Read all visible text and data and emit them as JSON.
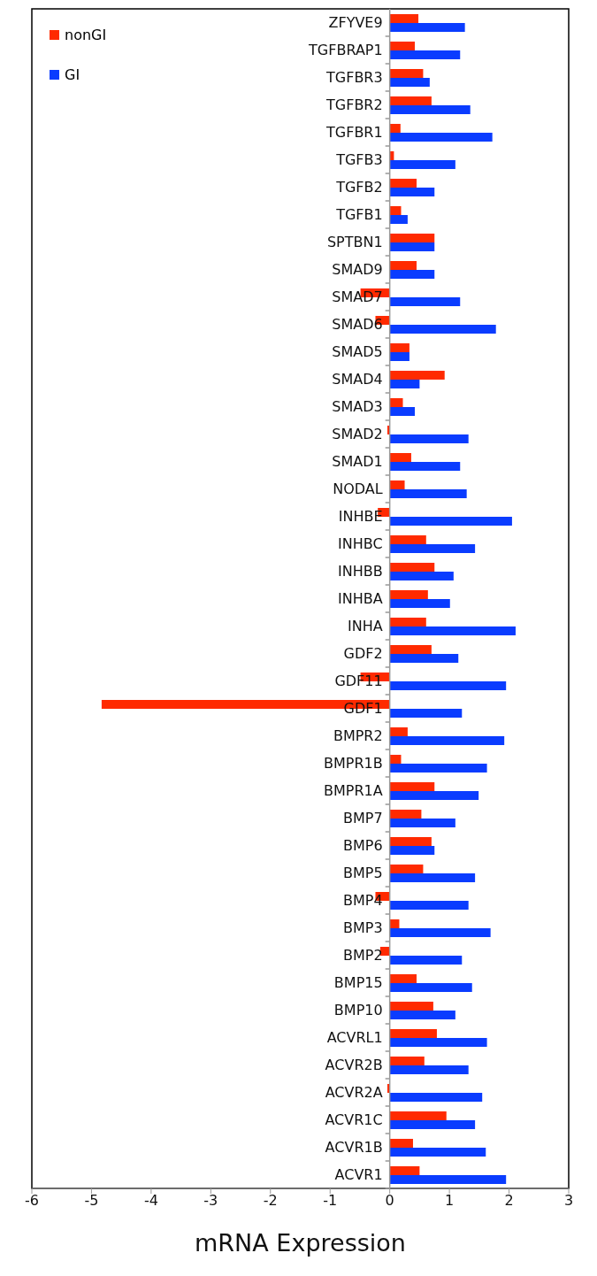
{
  "chart_data": {
    "type": "bar",
    "orientation": "horizontal",
    "xlabel": "mRNA Expression",
    "categories": [
      "ZFYVE9",
      "TGFBRAP1",
      "TGFBR3",
      "TGFBR2",
      "TGFBR1",
      "TGFB3",
      "TGFB2",
      "TGFB1",
      "SPTBN1",
      "SMAD9",
      "SMAD7",
      "SMAD6",
      "SMAD5",
      "SMAD4",
      "SMAD3",
      "SMAD2",
      "SMAD1",
      "NODAL",
      "INHBE",
      "INHBC",
      "INHBB",
      "INHBA",
      "INHA",
      "GDF2",
      "GDF11",
      "GDF1",
      "BMPR2",
      "BMPR1B",
      "BMPR1A",
      "BMP7",
      "BMP6",
      "BMP5",
      "BMP4",
      "BMP3",
      "BMP2",
      "BMP15",
      "BMP10",
      "ACVRL1",
      "ACVR2B",
      "ACVR2A",
      "ACVR1C",
      "ACVR1B",
      "ACVR1"
    ],
    "series": [
      {
        "name": "nonGI",
        "color": "#ff2a00",
        "values": [
          0.48,
          0.42,
          0.56,
          0.7,
          0.18,
          0.07,
          0.45,
          0.19,
          0.75,
          0.45,
          -0.49,
          -0.24,
          0.33,
          0.92,
          0.22,
          -0.04,
          0.36,
          0.25,
          -0.2,
          0.61,
          0.75,
          0.64,
          0.61,
          0.7,
          -0.49,
          -4.83,
          0.3,
          0.19,
          0.75,
          0.53,
          0.7,
          0.56,
          -0.24,
          0.16,
          -0.16,
          0.45,
          0.73,
          0.79,
          0.58,
          -0.04,
          0.95,
          0.39,
          0.5
        ]
      },
      {
        "name": "GI",
        "color": "#0a3cff",
        "values": [
          1.26,
          1.18,
          0.67,
          1.35,
          1.72,
          1.1,
          0.75,
          0.3,
          0.75,
          0.75,
          1.18,
          1.78,
          0.33,
          0.5,
          0.42,
          1.32,
          1.18,
          1.29,
          2.05,
          1.43,
          1.07,
          1.01,
          2.11,
          1.15,
          1.95,
          1.21,
          1.92,
          1.63,
          1.49,
          1.1,
          0.75,
          1.43,
          1.32,
          1.69,
          1.21,
          1.38,
          1.1,
          1.63,
          1.32,
          1.55,
          1.43,
          1.61,
          1.95
        ]
      }
    ],
    "xlim": [
      -6,
      3
    ],
    "xticks": [
      -6,
      -5,
      -4,
      -3,
      -2,
      -1,
      0,
      1,
      2,
      3
    ],
    "legend": "top left"
  }
}
